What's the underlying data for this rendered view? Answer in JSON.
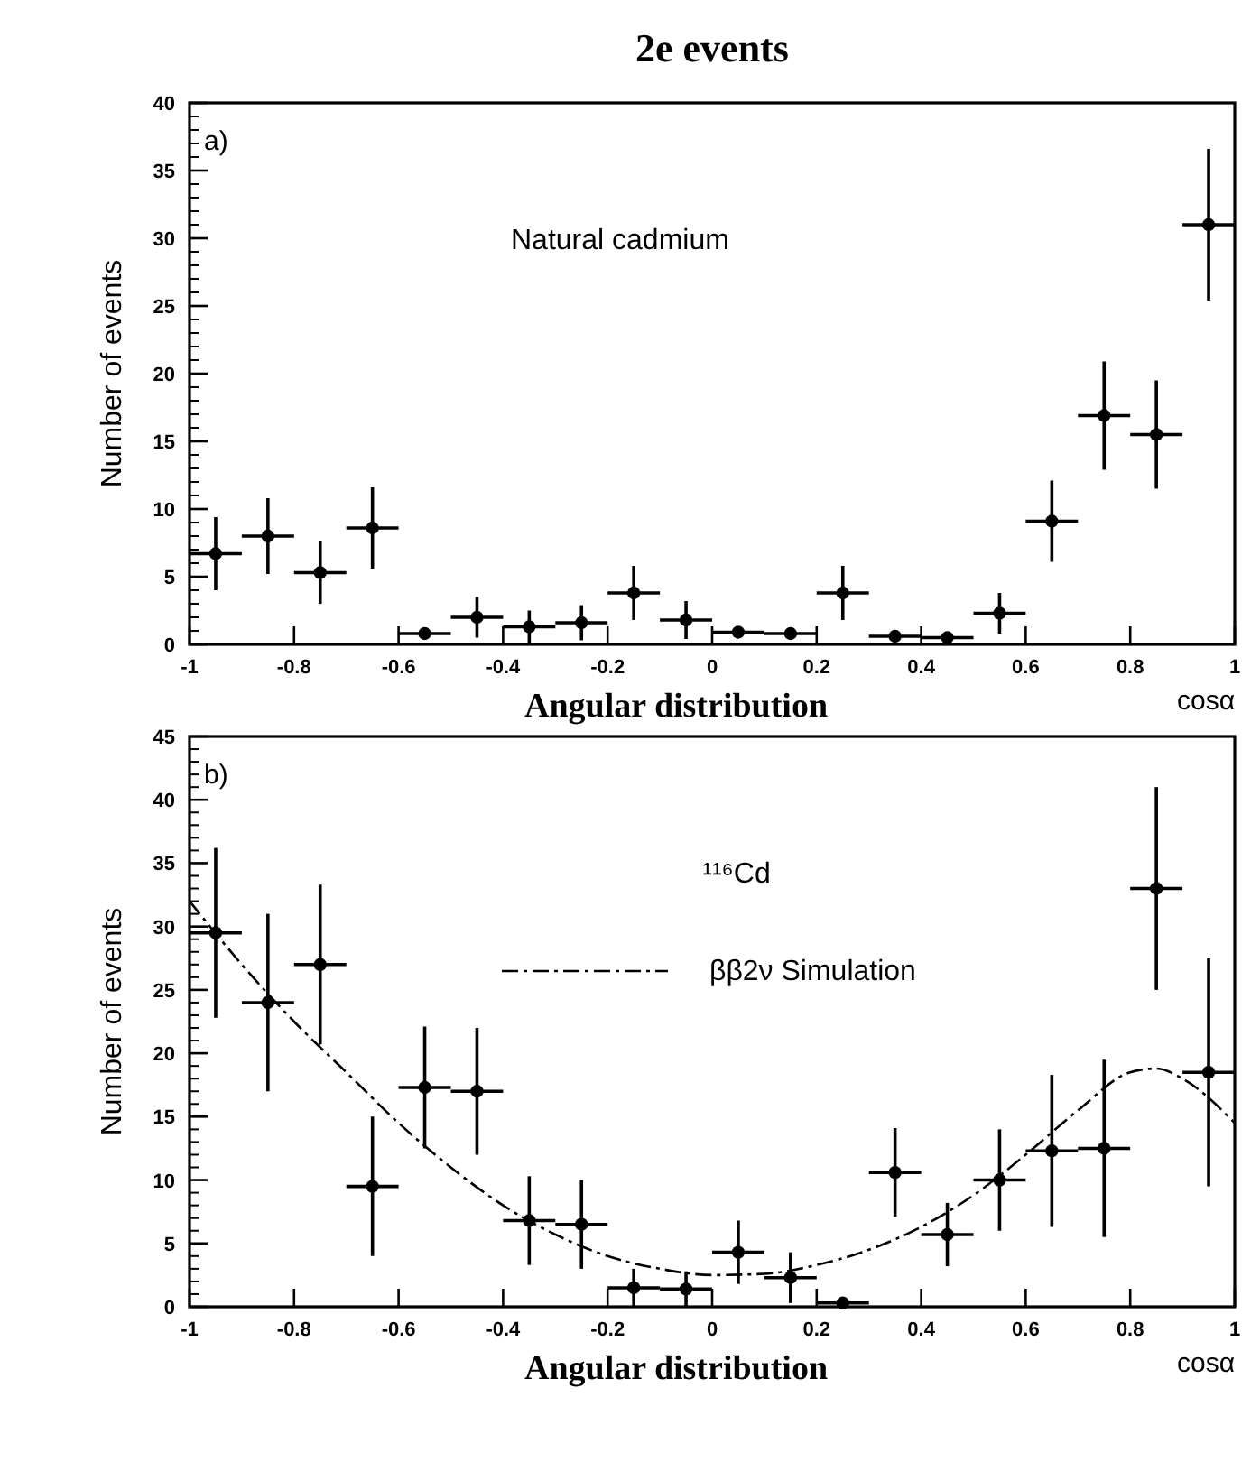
{
  "chart_data": [
    {
      "type": "scatter",
      "title": "2e events",
      "xlabel": "cosα",
      "ylabel": "Number of events",
      "annotations": [
        "a)",
        "Natural cadmium",
        "Angular distribution"
      ],
      "marker": "circle",
      "x": [
        -0.95,
        -0.85,
        -0.75,
        -0.65,
        -0.55,
        -0.45,
        -0.35,
        -0.25,
        -0.15,
        -0.05,
        0.05,
        0.15,
        0.25,
        0.35,
        0.45,
        0.55,
        0.65,
        0.75,
        0.85,
        0.95
      ],
      "series": [
        {
          "color": "#000000",
          "values": [
            6.7,
            8,
            5.3,
            8.6,
            0.8,
            2,
            1.3,
            1.6,
            3.8,
            1.8,
            0.9,
            0.8,
            3.8,
            0.6,
            0.5,
            2.3,
            9.1,
            16.9,
            15.5,
            31
          ],
          "errors": [
            2.7,
            2.8,
            2.3,
            3,
            null,
            1.5,
            1.2,
            1.3,
            2,
            1.4,
            null,
            null,
            2,
            null,
            null,
            1.5,
            3,
            4,
            4,
            5.6
          ],
          "xerrors": [
            0.05,
            0.05,
            0.05,
            0.05,
            0.05,
            0.05,
            0.05,
            0.05,
            0.05,
            0.05,
            0.05,
            0.05,
            0.05,
            0.05,
            0.05,
            0.05,
            0.05,
            0.05,
            0.05,
            0.05
          ]
        }
      ],
      "xlim": [
        -1,
        1
      ],
      "xticks": [
        -1,
        -0.8,
        -0.6,
        -0.4,
        -0.2,
        0,
        0.2,
        0.4,
        0.6,
        0.8,
        1
      ],
      "ylim": [
        0,
        40
      ],
      "yticks": [
        0,
        5,
        10,
        15,
        20,
        25,
        30,
        35,
        40
      ]
    },
    {
      "type": "scatter",
      "xlabel": "cosα",
      "ylabel": "Number of events",
      "annotations": [
        "b)",
        "¹¹⁶Cd",
        "Angular distribution"
      ],
      "marker": "circle",
      "legend": "top",
      "x": [
        -0.95,
        -0.85,
        -0.75,
        -0.65,
        -0.55,
        -0.45,
        -0.35,
        -0.25,
        -0.15,
        -0.05,
        0.05,
        0.15,
        0.25,
        0.35,
        0.45,
        0.55,
        0.65,
        0.75,
        0.85,
        0.95
      ],
      "series": [
        {
          "color": "#000000",
          "values": [
            29.5,
            24,
            27,
            9.5,
            17.3,
            17,
            6.8,
            6.5,
            1.5,
            1.4,
            4.3,
            2.3,
            0.3,
            10.6,
            5.7,
            10,
            12.3,
            12.5,
            33,
            18.5
          ],
          "errors": [
            6.7,
            7,
            6.3,
            5.5,
            4.8,
            5,
            3.5,
            3.5,
            1.5,
            1.4,
            2.5,
            2,
            0.3,
            3.5,
            2.5,
            4,
            6,
            7,
            8,
            9
          ],
          "xerrors": [
            0.05,
            0.05,
            0.05,
            0.05,
            0.05,
            0.05,
            0.05,
            0.05,
            0.05,
            0.05,
            0.05,
            0.05,
            0.05,
            0.05,
            0.05,
            0.05,
            0.05,
            0.05,
            0.05,
            0.05
          ]
        },
        {
          "type": "line",
          "name": "ββ2ν Simulation",
          "color": "#000000",
          "line_style": "dashed",
          "marker": "none",
          "x": [
            -1,
            -0.9,
            -0.8,
            -0.7,
            -0.6,
            -0.5,
            -0.4,
            -0.3,
            -0.2,
            -0.1,
            0,
            0.1,
            0.2,
            0.3,
            0.4,
            0.5,
            0.6,
            0.7,
            0.8,
            0.85,
            0.9,
            1
          ],
          "values": [
            32,
            27,
            22.5,
            18.5,
            14.5,
            11,
            8,
            5.7,
            4,
            3,
            2.5,
            2.6,
            3.3,
            4.5,
            6.3,
            8.8,
            12,
            15.5,
            18.5,
            18.8,
            18,
            14.5
          ]
        }
      ],
      "xlim": [
        -1,
        1
      ],
      "xticks": [
        -1,
        -0.8,
        -0.6,
        -0.4,
        -0.2,
        0,
        0.2,
        0.4,
        0.6,
        0.8,
        1
      ],
      "ylim": [
        0,
        45
      ],
      "yticks": [
        0,
        5,
        10,
        15,
        20,
        25,
        30,
        35,
        40,
        45
      ]
    }
  ]
}
